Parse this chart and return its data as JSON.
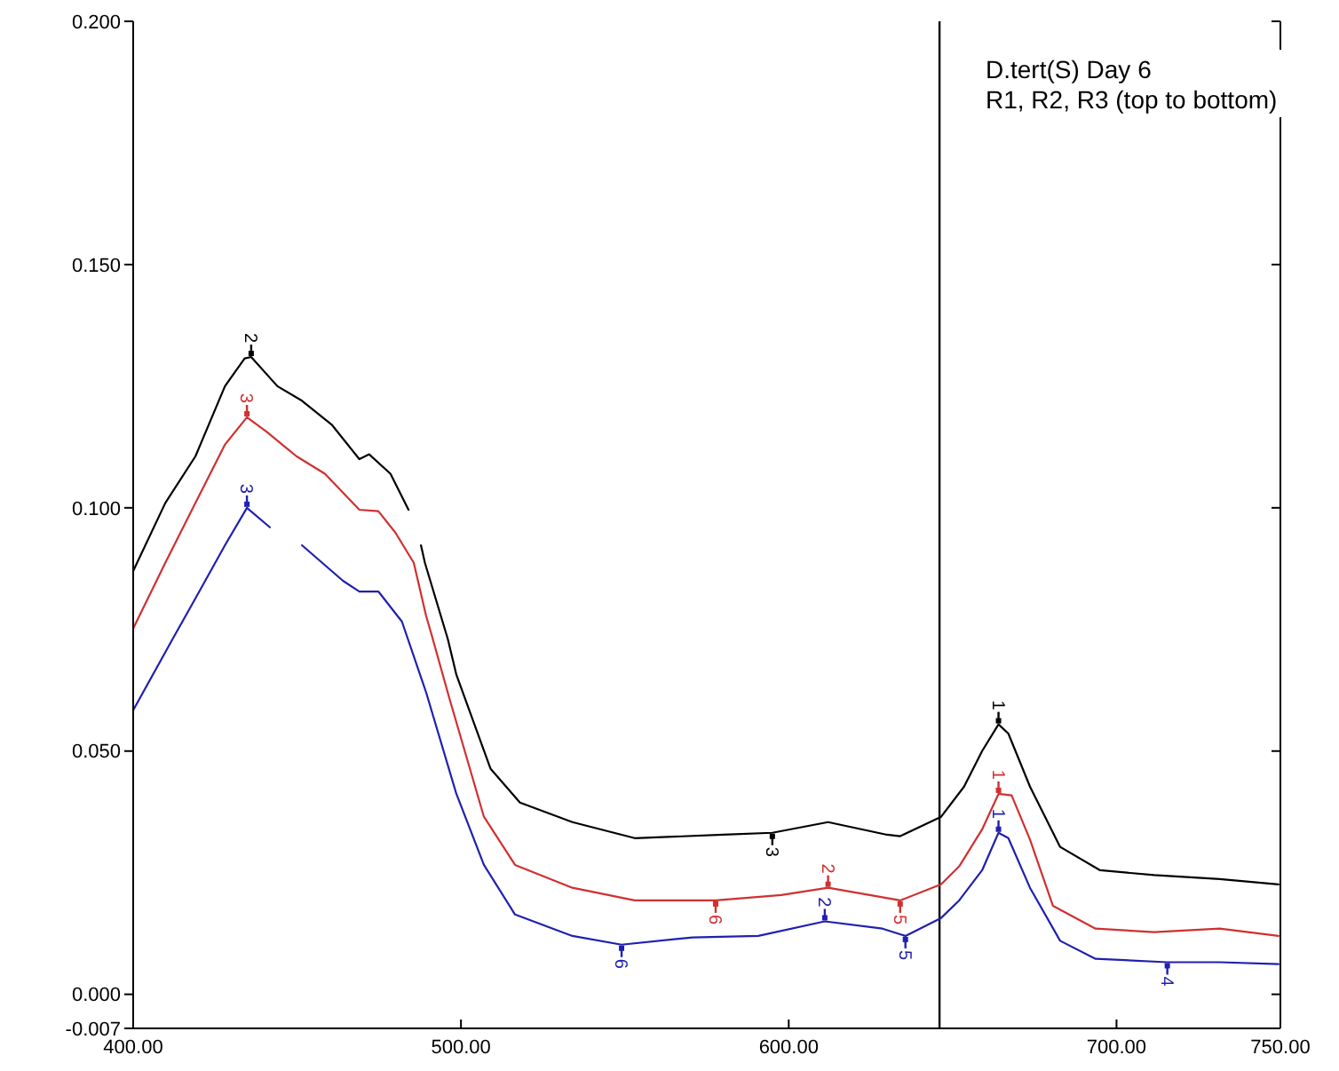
{
  "chart_data": {
    "type": "line",
    "xlim": [
      400,
      750
    ],
    "ylim": [
      -0.007,
      0.2
    ],
    "xticks": [
      {
        "value": 400,
        "label": "400.00"
      },
      {
        "value": 500,
        "label": "500.00"
      },
      {
        "value": 600,
        "label": "600.00"
      },
      {
        "value": 700,
        "label": "700.00"
      },
      {
        "value": 750,
        "label": "750.00"
      }
    ],
    "yticks": [
      {
        "value": -0.007,
        "label": "-0.007"
      },
      {
        "value": 0,
        "label": "0.000"
      },
      {
        "value": 0.05,
        "label": "0.050"
      },
      {
        "value": 0.1,
        "label": "0.100"
      },
      {
        "value": 0.15,
        "label": "0.150"
      },
      {
        "value": 0.2,
        "label": "0.200"
      }
    ],
    "grid": false,
    "marker": "none",
    "line_style": "solid",
    "series": [
      {
        "color": "#000000",
        "x": [
          400,
          409.8,
          419,
          428,
          434,
          436,
          444,
          451.5,
          460.7,
          469,
          472,
          478.5,
          484,
          486,
          487.8,
          489,
          496,
          498.6,
          509,
          518,
          534,
          553,
          580,
          595,
          612,
          630,
          634,
          646.5,
          653.5,
          659,
          664,
          667,
          673.6,
          682.8,
          695,
          711.5,
          731.5,
          749.4
        ],
        "values": [
          0.087,
          0.101,
          0.1106,
          0.125,
          0.1307,
          0.131,
          0.125,
          0.122,
          0.117,
          0.11,
          0.111,
          0.107,
          0.0996,
          null,
          0.0923,
          0.0887,
          0.073,
          0.0657,
          0.0464,
          0.0394,
          0.0354,
          0.0321,
          0.0328,
          0.0332,
          0.0354,
          0.0328,
          0.0325,
          0.0365,
          0.0427,
          0.05,
          0.0555,
          0.0536,
          0.0427,
          0.0303,
          0.0255,
          0.0245,
          0.0237,
          0.0226
        ]
      },
      {
        "color": "#d03030",
        "x": [
          400,
          409.8,
          419,
          428,
          434.7,
          440.6,
          449.8,
          458.5,
          469,
          474.8,
          480,
          485.6,
          489.4,
          491,
          496.4,
          507,
          516.5,
          534,
          553,
          577.7,
          597.7,
          612,
          634,
          646.5,
          652,
          659,
          664,
          668,
          673.6,
          680.6,
          693.6,
          711.5,
          731.5,
          749.4
        ],
        "values": [
          0.0752,
          0.0887,
          0.101,
          0.113,
          0.1186,
          0.1157,
          0.1106,
          0.107,
          0.0996,
          0.0993,
          0.0949,
          0.0887,
          0.0777,
          0.074,
          0.061,
          0.0365,
          0.0266,
          0.0219,
          0.0193,
          0.0193,
          0.0204,
          0.0219,
          0.0193,
          0.0226,
          0.0263,
          0.0339,
          0.0412,
          0.0409,
          0.0318,
          0.0182,
          0.0135,
          0.0128,
          0.0135,
          0.012
        ]
      },
      {
        "color": "#2020b0",
        "x": [
          400,
          412,
          419,
          428,
          434.7,
          441.7,
          446,
          451.5,
          464,
          469,
          474.8,
          482,
          489.4,
          498.6,
          507,
          516.5,
          534,
          549,
          570.6,
          590.7,
          611,
          628.6,
          635.6,
          646.5,
          652,
          659,
          664,
          667,
          673.6,
          682.8,
          693.6,
          715.5,
          731.5,
          749.4
        ],
        "values": [
          0.0584,
          0.073,
          0.0814,
          0.0923,
          0.1,
          0.096,
          null,
          0.0923,
          0.085,
          0.0828,
          0.0828,
          0.0766,
          0.062,
          0.0412,
          0.0266,
          0.0164,
          0.012,
          0.0102,
          0.0117,
          0.012,
          0.015,
          0.0135,
          0.012,
          0.0157,
          0.0193,
          0.0255,
          0.0332,
          0.0321,
          0.0219,
          0.011,
          0.0073,
          0.0066,
          0.0066,
          0.0062
        ]
      }
    ],
    "ref_lines": [
      {
        "axis": "x",
        "value": 646,
        "color": "#000000"
      }
    ],
    "annotations": [
      "D.tert(S) Day 6",
      "R1, R2, R3 (top to bottom)",
      {
        "text": "2",
        "x": 436,
        "y": 0.131
      },
      {
        "text": "3",
        "x": 595,
        "y": 0.0332
      },
      {
        "text": "1",
        "x": 664,
        "y": 0.0555
      },
      {
        "text": "3",
        "x": 434.7,
        "y": 0.1186
      },
      {
        "text": "6",
        "x": 577.7,
        "y": 0.0193
      },
      {
        "text": "2",
        "x": 612,
        "y": 0.0219
      },
      {
        "text": "5",
        "x": 634,
        "y": 0.0193
      },
      {
        "text": "1",
        "x": 664,
        "y": 0.0412
      },
      {
        "text": "3",
        "x": 434.7,
        "y": 0.1
      },
      {
        "text": "6",
        "x": 549,
        "y": 0.0102
      },
      {
        "text": "2",
        "x": 611,
        "y": 0.015
      },
      {
        "text": "5",
        "x": 635.6,
        "y": 0.012
      },
      {
        "text": "1",
        "x": 664,
        "y": 0.0332
      },
      {
        "text": "4",
        "x": 715.5,
        "y": 0.0066
      }
    ]
  }
}
